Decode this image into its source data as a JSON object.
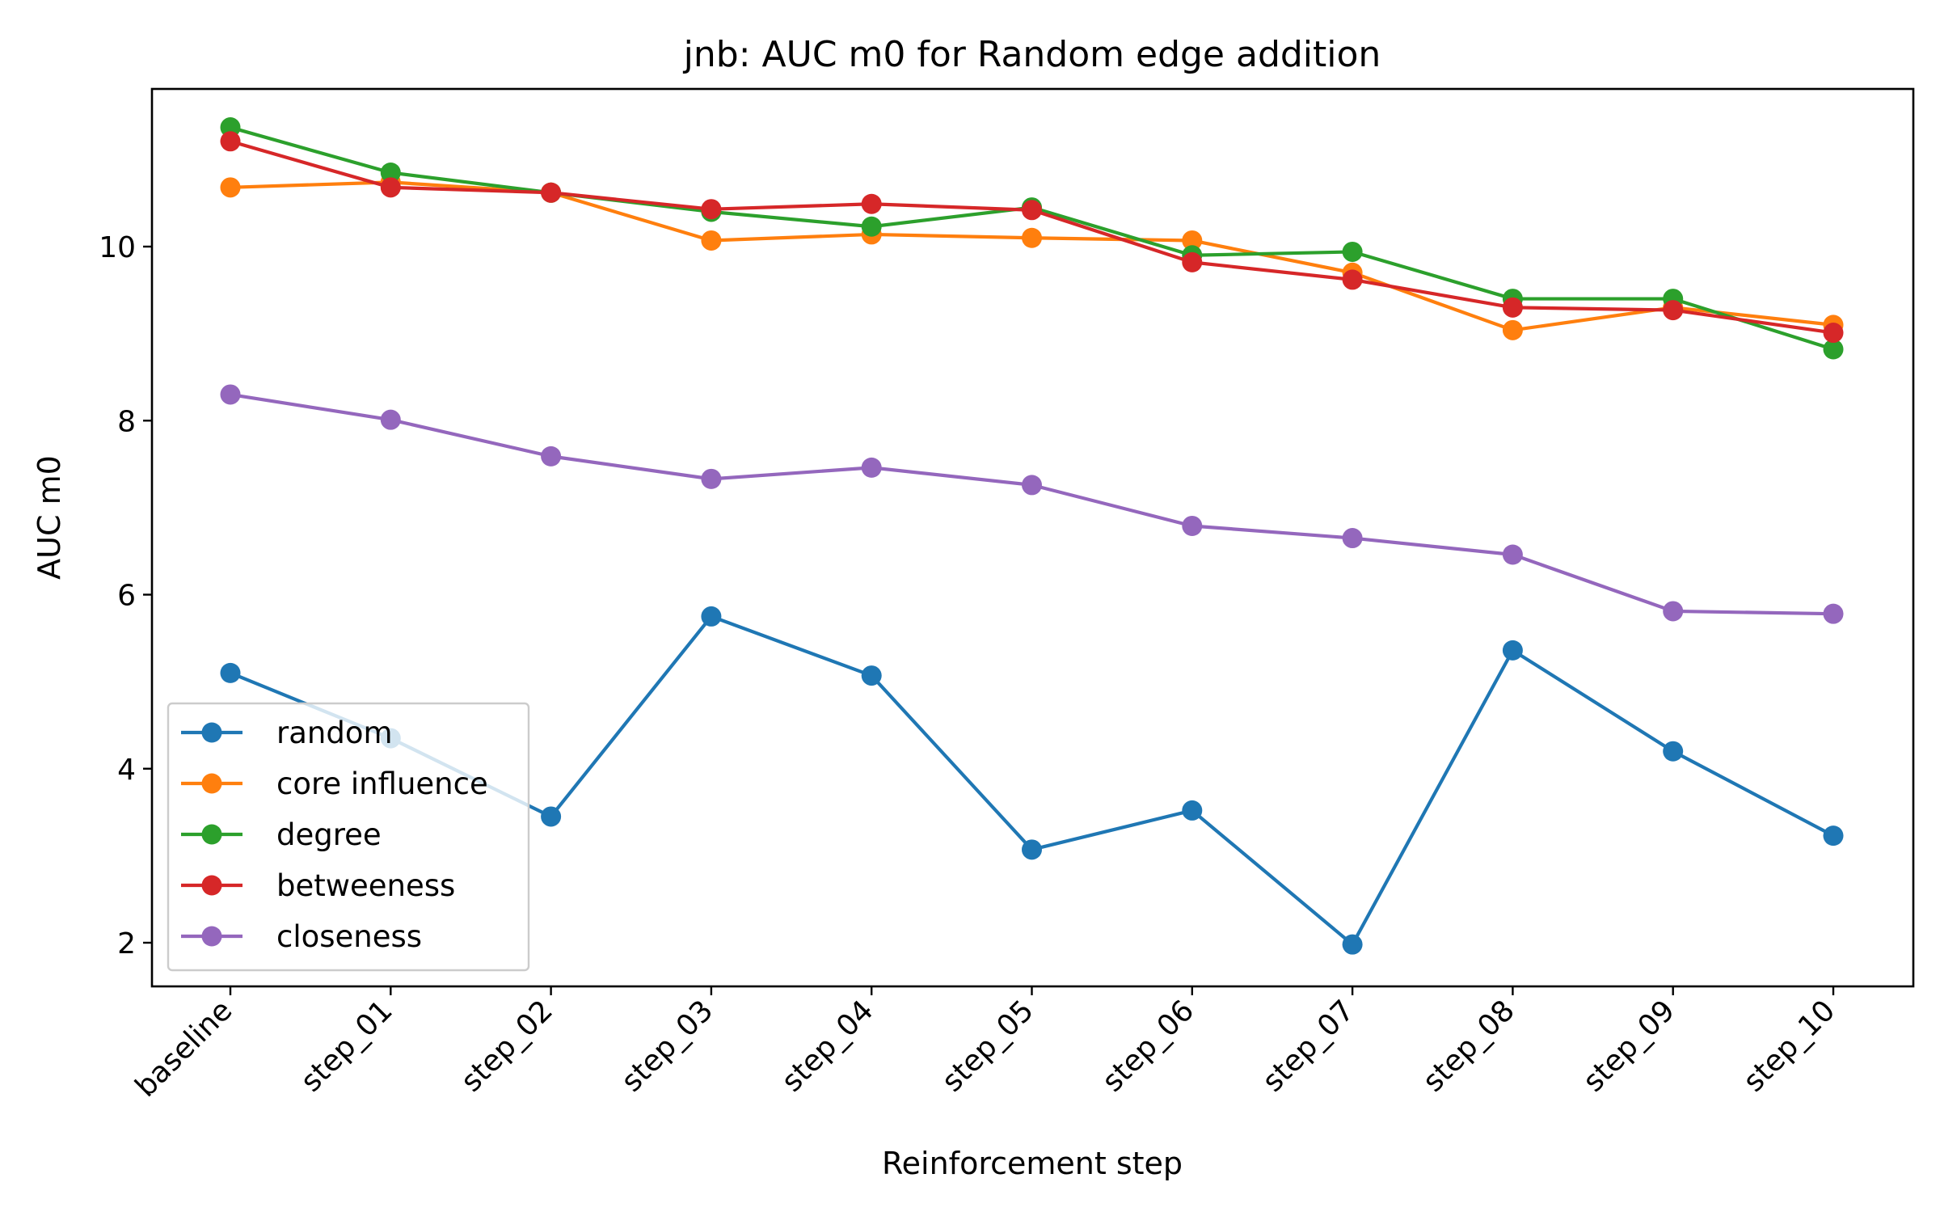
{
  "chart_data": {
    "type": "line",
    "title": "jnb: AUC m0 for Random edge addition",
    "xlabel": "Reinforcement step",
    "ylabel": "AUC m0",
    "categories": [
      "baseline",
      "step_01",
      "step_02",
      "step_03",
      "step_04",
      "step_05",
      "step_06",
      "step_07",
      "step_08",
      "step_09",
      "step_10"
    ],
    "ylim": [
      1.5,
      11.8
    ],
    "yticks": [
      "2",
      "4",
      "6",
      "8",
      "10"
    ],
    "grid": false,
    "legend_position": "lower-left",
    "series": [
      {
        "name": "random",
        "color": "#1f77b4",
        "values": [
          5.1,
          4.35,
          3.45,
          5.75,
          5.07,
          3.07,
          3.52,
          1.98,
          5.36,
          4.2,
          3.23
        ]
      },
      {
        "name": "core influence",
        "color": "#ff7f0e",
        "values": [
          10.68,
          10.74,
          10.62,
          10.07,
          10.14,
          10.1,
          10.07,
          9.7,
          9.04,
          9.3,
          9.1
        ]
      },
      {
        "name": "degree",
        "color": "#2ca02c",
        "values": [
          11.37,
          10.85,
          10.62,
          10.4,
          10.23,
          10.45,
          9.9,
          9.94,
          9.4,
          9.4,
          8.82
        ]
      },
      {
        "name": "betweeness",
        "color": "#d62728",
        "values": [
          11.21,
          10.68,
          10.62,
          10.43,
          10.49,
          10.42,
          9.82,
          9.62,
          9.3,
          9.27,
          9.01
        ]
      },
      {
        "name": "closeness",
        "color": "#9467bd",
        "values": [
          8.3,
          8.01,
          7.59,
          7.33,
          7.46,
          7.26,
          6.79,
          6.65,
          6.46,
          5.81,
          5.78
        ]
      }
    ]
  }
}
